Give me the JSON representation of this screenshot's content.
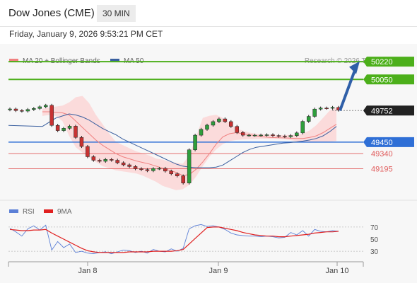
{
  "header": {
    "title": "Dow Jones (CME)",
    "timeframe": "30 MIN"
  },
  "timestamp": "Friday, January 9, 2026 9:53:21 PM CET",
  "chart_data": [
    {
      "type": "candlestick",
      "legend": [
        {
          "label": "MA 20 + Bollinger Bands",
          "color": "#f08080"
        },
        {
          "label": "MA 50",
          "color": "#3a5f9f"
        }
      ],
      "credit": "Research © 2026 Trading Central",
      "ylim": [
        48900,
        50350
      ],
      "levels": [
        {
          "label": "50220",
          "value": 50220,
          "color": "#4caf1a",
          "style": "badge"
        },
        {
          "label": "50050",
          "value": 50050,
          "color": "#4caf1a",
          "style": "badge"
        },
        {
          "label": "49752",
          "value": 49752,
          "color": "#222222",
          "style": "price"
        },
        {
          "label": "49450",
          "value": 49450,
          "color": "#2f6fd6",
          "style": "badge"
        },
        {
          "label": "49340",
          "value": 49340,
          "color": "#e05a5a",
          "style": "text"
        },
        {
          "label": "49195",
          "value": 49195,
          "color": "#e05a5a",
          "style": "text"
        }
      ],
      "close": [
        49767,
        49752,
        49747,
        49762,
        49772,
        49788,
        49802,
        49610,
        49560,
        49582,
        49602,
        49495,
        49408,
        49310,
        49276,
        49266,
        49284,
        49276,
        49252,
        49232,
        49216,
        49195,
        49186,
        49176,
        49196,
        49198,
        49172,
        49146,
        49126,
        49058,
        49376,
        49516,
        49572,
        49612,
        49646,
        49672,
        49646,
        49600,
        49542,
        49516,
        49516,
        49516,
        49517,
        49520,
        49512,
        49507,
        49502,
        49512,
        49538,
        49648,
        49696,
        49766,
        49776,
        49774,
        49782,
        49756
      ],
      "bands": {
        "upper": [
          49770,
          49780,
          49790,
          49800,
          49830,
          49880,
          49892,
          49822,
          49712,
          49622,
          49532,
          49452,
          49422,
          49392,
          49362,
          49342,
          49322,
          49292,
          49282,
          49262,
          49252,
          49242,
          49322,
          49502,
          49682,
          49702,
          49712,
          49682,
          49632,
          49580,
          49560,
          49540,
          49530,
          49525,
          49520,
          49517,
          49517,
          49518,
          49522,
          49532,
          49562,
          49612,
          49682,
          49752,
          49782
        ],
        "lower": [
          49700,
          49710,
          49700,
          49650,
          49510,
          49400,
          49350,
          49300,
          49260,
          49220,
          49200,
          49180,
          49170,
          49160,
          49150,
          49130,
          49100,
          49070,
          49030,
          49010,
          48990,
          48998,
          49040,
          49120,
          49220,
          49310,
          49380,
          49430,
          49460,
          49470,
          49475,
          49478,
          49480,
          49482,
          49480,
          49480,
          49478,
          49470,
          49460,
          49452,
          49445,
          49445,
          49450,
          49455,
          49460
        ]
      },
      "ma20": [
        49740,
        49740,
        49735,
        49730,
        49710,
        49650,
        49590,
        49530,
        49470,
        49420,
        49380,
        49340,
        49310,
        49290,
        49270,
        49255,
        49240,
        49220,
        49200,
        49180,
        49160,
        49130,
        49140,
        49190,
        49260,
        49340,
        49430,
        49500,
        49530,
        49540,
        49530,
        49520,
        49510,
        49500,
        49495,
        49492,
        49490,
        49488,
        49485,
        49485,
        49495,
        49510,
        49540,
        49580,
        49620
      ],
      "ma50": [
        49600,
        49640,
        49680,
        49700,
        49720,
        49710,
        49690,
        49660,
        49620,
        49580,
        49550,
        49520,
        49480,
        49450,
        49420,
        49390,
        49360,
        49330,
        49300,
        49270,
        49240,
        49220,
        49210,
        49205,
        49205,
        49205,
        49210,
        49230,
        49270,
        49310,
        49350,
        49380,
        49400,
        49410,
        49420,
        49430,
        49440,
        49445,
        49452,
        49460,
        49470,
        49485,
        49510,
        49550,
        49600
      ]
    },
    {
      "type": "line",
      "title": "",
      "series": [
        {
          "name": "RSI",
          "color": "#5b7fd6",
          "values": [
            68,
            62,
            55,
            67,
            72,
            65,
            73,
            32,
            46,
            36,
            42,
            28,
            30,
            27,
            26,
            28,
            29,
            26,
            29,
            32,
            31,
            28,
            30,
            27,
            33,
            30,
            29,
            34,
            30,
            35,
            67,
            72,
            74,
            71,
            72,
            70,
            66,
            60,
            57,
            56,
            55,
            55,
            54,
            55,
            54,
            52,
            53,
            61,
            57,
            64,
            55,
            66,
            63,
            62,
            64,
            63
          ]
        },
        {
          "name": "9MA",
          "color": "#e02020",
          "values": [
            66,
            65,
            64,
            64,
            65,
            65,
            66,
            60,
            55,
            50,
            45,
            40,
            35,
            31,
            29,
            28,
            28,
            28,
            28,
            28,
            29,
            29,
            29,
            29,
            30,
            30,
            30,
            30,
            31,
            33,
            42,
            51,
            60,
            69,
            70,
            70,
            68,
            66,
            64,
            61,
            59,
            57,
            56,
            55,
            55,
            54,
            54,
            55,
            56,
            57,
            58,
            60,
            61,
            62,
            62,
            63
          ]
        }
      ],
      "ylim": [
        15,
        85
      ],
      "yticks": [
        "70",
        "50",
        "30"
      ],
      "xticks": [
        "Jan 8",
        "Jan 9",
        "Jan 10"
      ]
    }
  ]
}
